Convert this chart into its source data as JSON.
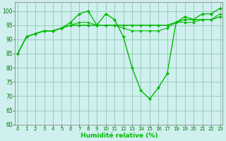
{
  "xlabel": "Humidité relative (%)",
  "bg_color": "#cff0ee",
  "grid_color": "#99ccbb",
  "line_color": "#00bb00",
  "marker_color": "#00bb00",
  "ylim": [
    60,
    103
  ],
  "xlim": [
    -0.3,
    23.3
  ],
  "yticks": [
    60,
    65,
    70,
    75,
    80,
    85,
    90,
    95,
    100
  ],
  "xticks": [
    0,
    1,
    2,
    3,
    4,
    5,
    6,
    7,
    8,
    9,
    10,
    11,
    12,
    13,
    14,
    15,
    16,
    17,
    18,
    19,
    20,
    21,
    22,
    23
  ],
  "series": [
    [
      85,
      91,
      92,
      93,
      93,
      94,
      96,
      99,
      100,
      95,
      99,
      97,
      91,
      80,
      72,
      69,
      73,
      78,
      96,
      98,
      97,
      99,
      99,
      101
    ],
    [
      85,
      91,
      92,
      93,
      93,
      94,
      95,
      96,
      96,
      95,
      95,
      95,
      94,
      93,
      93,
      93,
      93,
      94,
      96,
      97,
      97,
      97,
      97,
      99
    ],
    [
      85,
      91,
      92,
      93,
      93,
      94,
      95,
      95,
      95,
      95,
      95,
      95,
      95,
      95,
      95,
      95,
      95,
      95,
      96,
      97,
      97,
      97,
      97,
      98
    ],
    [
      85,
      91,
      92,
      93,
      93,
      94,
      95,
      95,
      95,
      95,
      95,
      95,
      95,
      95,
      95,
      95,
      95,
      95,
      96,
      96,
      96,
      97,
      97,
      98
    ]
  ]
}
